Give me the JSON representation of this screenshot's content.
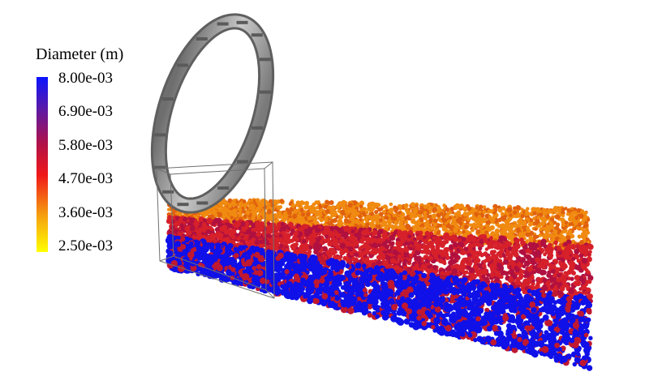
{
  "legend": {
    "title": "Diameter (m)",
    "ticks": [
      "8.00e-03",
      "6.90e-03",
      "5.80e-03",
      "4.70e-03",
      "3.60e-03",
      "2.50e-03"
    ],
    "colors": [
      "#0a14ff",
      "#5a1aa8",
      "#b0124a",
      "#f01818",
      "#f59a10",
      "#ffff00"
    ]
  },
  "scene": {
    "particle_layers": [
      {
        "name": "top-layer",
        "color": "#f08a10",
        "alt_color": "#e0600e"
      },
      {
        "name": "middle-layer",
        "color": "#d6202a",
        "alt_color": "#b01040"
      },
      {
        "name": "bottom-layer",
        "color": "#1010e8",
        "alt_color": "#c01830"
      }
    ],
    "ring_color": "#9a9a9a",
    "box_color": "#707070"
  }
}
